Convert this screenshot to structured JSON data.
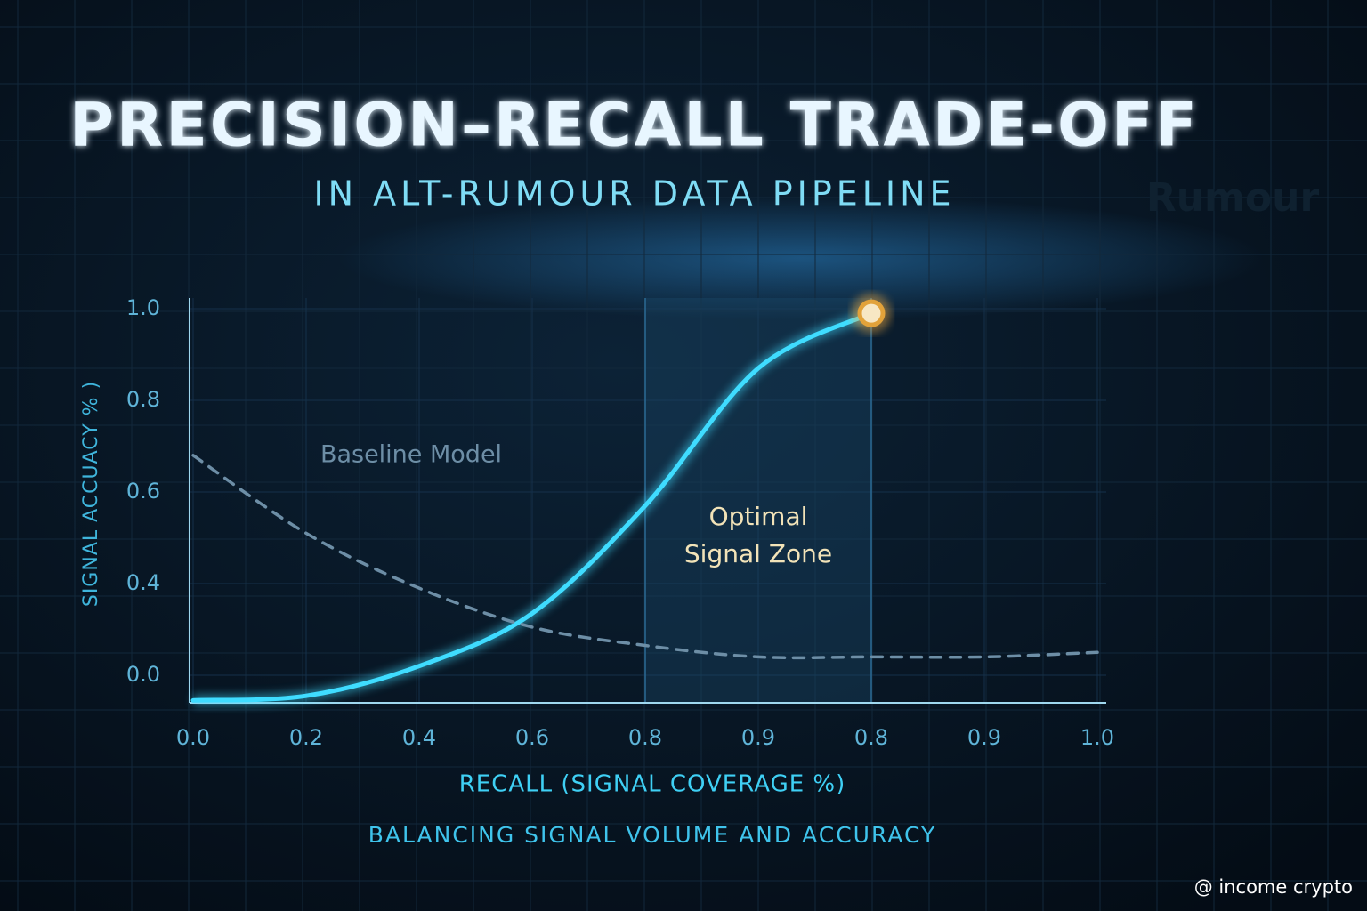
{
  "chart_data": {
    "type": "line",
    "title": "PRECISION–RECALL TRADE-OFF",
    "subtitle": "IN ALT-RUMOUR DATA PIPELINE",
    "x_label": "RECALL (SIGNAL COVERAGE %)",
    "y_label": "SIGNAL ACCUACY % )",
    "caption": "BALANCING SIGNAL VOLUME AND ACCURACY",
    "zone_label": [
      "Optimal",
      "Signal Zone"
    ],
    "logo_text": "Rumour",
    "watermark": "@ income crypto",
    "categories": [
      "0.0",
      "0.2",
      "0.4",
      "0.6",
      "0.8",
      "0.9",
      "0.8",
      "0.9",
      "1.0"
    ],
    "yticks": [
      {
        "value": 1.0,
        "label": "1.0"
      },
      {
        "value": 0.8,
        "label": "0.8"
      },
      {
        "value": 0.6,
        "label": "0.6"
      },
      {
        "value": 0.4,
        "label": "0.4"
      },
      {
        "value": 0.0,
        "label": "0.0"
      }
    ],
    "series": [
      {
        "color": "#3fdcff",
        "style": "solid",
        "values": [
          -0.11,
          -0.09,
          0.04,
          0.27,
          0.57,
          0.87,
          0.99,
          null,
          null
        ]
      },
      {
        "name": "Baseline Model",
        "color": "#6d8ea6",
        "style": "dashed",
        "values": [
          0.68,
          0.51,
          0.38,
          0.21,
          0.13,
          0.08,
          0.08,
          0.08,
          0.1
        ]
      }
    ],
    "grid": true
  }
}
